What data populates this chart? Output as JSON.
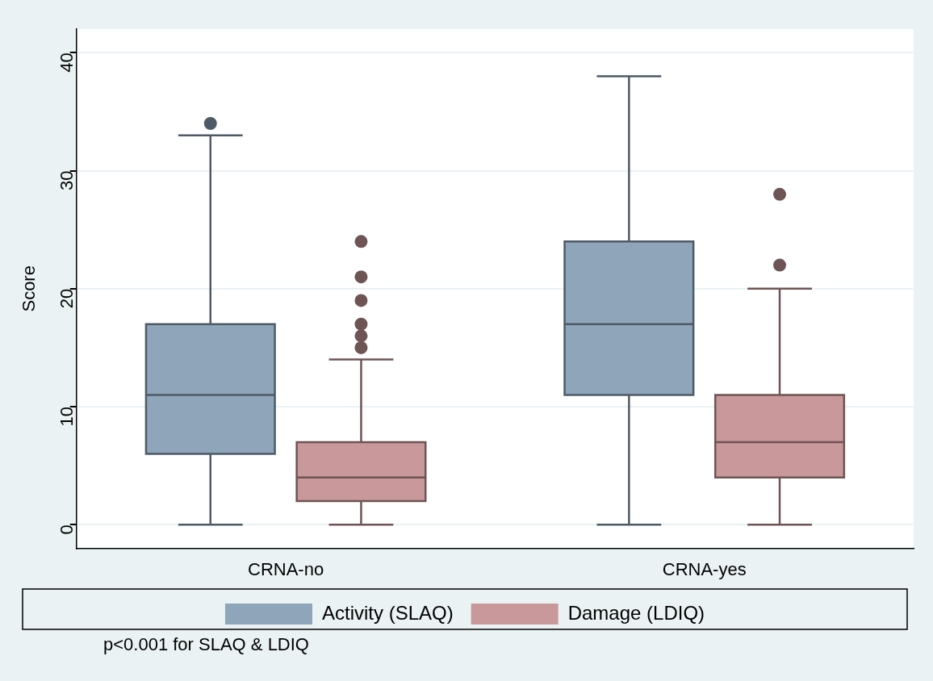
{
  "chart_data": {
    "type": "box",
    "ylabel": "Score",
    "categories": [
      "CRNA-no",
      "CRNA-yes"
    ],
    "series": [
      {
        "name": "Activity (SLAQ)",
        "color": "#8ea5ba",
        "boxes": [
          {
            "low": 0,
            "q1": 6,
            "median": 11,
            "q3": 17,
            "high": 33,
            "outliers": [
              34
            ]
          },
          {
            "low": 0,
            "q1": 11,
            "median": 17,
            "q3": 24,
            "high": 38
          }
        ]
      },
      {
        "name": "Damage (LDIQ)",
        "color": "#c9989b",
        "boxes": [
          {
            "low": 0,
            "q1": 2,
            "median": 4,
            "q3": 7,
            "high": 14,
            "outliers": [
              15,
              16,
              17,
              19,
              21,
              24
            ]
          },
          {
            "low": 0,
            "q1": 4,
            "median": 7,
            "q3": 11,
            "high": 20,
            "outliers": [
              22,
              28
            ]
          }
        ]
      }
    ],
    "ylim": [
      -2,
      42
    ],
    "yticks": [
      0,
      10,
      20,
      30,
      40
    ],
    "grid": "y",
    "legend": "bottom",
    "annotations": [
      "p<0.001 for SLAQ & LDIQ"
    ]
  }
}
